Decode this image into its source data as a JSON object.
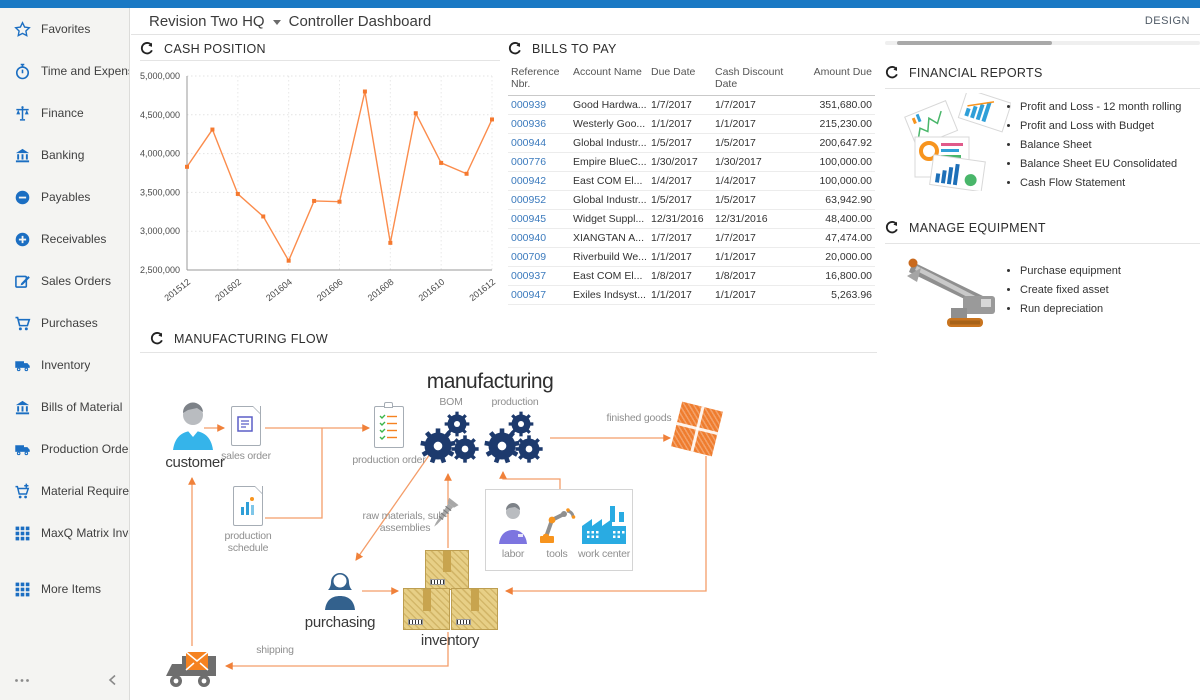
{
  "header": {
    "company": "Revision Two HQ",
    "page": "Controller Dashboard",
    "design_label": "DESIGN"
  },
  "sidebar": {
    "items": [
      {
        "label": "Favorites",
        "icon": "star"
      },
      {
        "label": "Time and Expenses",
        "icon": "stopwatch"
      },
      {
        "label": "Finance",
        "icon": "scales"
      },
      {
        "label": "Banking",
        "icon": "bank"
      },
      {
        "label": "Payables",
        "icon": "minus-circle"
      },
      {
        "label": "Receivables",
        "icon": "plus-circle"
      },
      {
        "label": "Sales Orders",
        "icon": "edit"
      },
      {
        "label": "Purchases",
        "icon": "cart"
      },
      {
        "label": "Inventory",
        "icon": "truck"
      },
      {
        "label": "Bills of Material",
        "icon": "bank"
      },
      {
        "label": "Production Orders",
        "icon": "truck"
      },
      {
        "label": "Material Requirem...",
        "icon": "cart-plus"
      },
      {
        "label": "MaxQ Matrix Invent...",
        "icon": "grid"
      },
      {
        "label": "More Items",
        "icon": "grid",
        "gap": true
      }
    ]
  },
  "panels": {
    "cash_position": {
      "title": "CASH POSITION"
    },
    "bills_to_pay": {
      "title": "BILLS TO PAY"
    },
    "financial_reports": {
      "title": "FINANCIAL REPORTS",
      "links": [
        "Profit and Loss - 12 month rolling",
        "Profit and Loss with Budget",
        "Balance Sheet",
        "Balance Sheet EU Consolidated",
        "Cash Flow Statement"
      ]
    },
    "manage_equipment": {
      "title": "MANAGE EQUIPMENT",
      "links": [
        "Purchase equipment",
        "Create fixed asset",
        "Run depreciation"
      ]
    },
    "manufacturing_flow": {
      "title": "MANUFACTURING FLOW"
    }
  },
  "bills": {
    "columns": [
      "Reference Nbr.",
      "Account Name",
      "Due Date",
      "Cash Discount Date",
      "Amount Due"
    ],
    "rows": [
      {
        "ref": "000939",
        "account": "Good Hardwa...",
        "due": "1/7/2017",
        "discount": "1/7/2017",
        "amount": "351,680.00"
      },
      {
        "ref": "000936",
        "account": "Westerly Goo...",
        "due": "1/1/2017",
        "discount": "1/1/2017",
        "amount": "215,230.00"
      },
      {
        "ref": "000944",
        "account": "Global Industr...",
        "due": "1/5/2017",
        "discount": "1/5/2017",
        "amount": "200,647.92"
      },
      {
        "ref": "000776",
        "account": "Empire BlueC...",
        "due": "1/30/2017",
        "discount": "1/30/2017",
        "amount": "100,000.00"
      },
      {
        "ref": "000942",
        "account": "East COM El...",
        "due": "1/4/2017",
        "discount": "1/4/2017",
        "amount": "100,000.00"
      },
      {
        "ref": "000952",
        "account": "Global Industr...",
        "due": "1/5/2017",
        "discount": "1/5/2017",
        "amount": "63,942.90"
      },
      {
        "ref": "000945",
        "account": "Widget Suppl...",
        "due": "12/31/2016",
        "discount": "12/31/2016",
        "amount": "48,400.00"
      },
      {
        "ref": "000940",
        "account": "XIANGTAN A...",
        "due": "1/7/2017",
        "discount": "1/7/2017",
        "amount": "47,474.00"
      },
      {
        "ref": "000709",
        "account": "Riverbuild We...",
        "due": "1/1/2017",
        "discount": "1/1/2017",
        "amount": "20,000.00"
      },
      {
        "ref": "000937",
        "account": "East COM El...",
        "due": "1/8/2017",
        "discount": "1/8/2017",
        "amount": "16,800.00"
      },
      {
        "ref": "000947",
        "account": "Exiles Indsyst...",
        "due": "1/1/2017",
        "discount": "1/1/2017",
        "amount": "5,263.96"
      }
    ]
  },
  "chart_data": {
    "type": "line",
    "title": "CASH POSITION",
    "x": [
      "201512",
      "201601",
      "201602",
      "201603",
      "201604",
      "201605",
      "201606",
      "201607",
      "201608",
      "201609",
      "201610",
      "201611",
      "201612"
    ],
    "values": [
      63830000,
      64310000,
      63480000,
      63190000,
      62620000,
      63390000,
      63380000,
      64800000,
      62850000,
      64520000,
      63880000,
      63740000,
      64440000
    ],
    "ylim": [
      62500000,
      65000000
    ],
    "ytick": 500000,
    "xtick_every": 2,
    "grid": true,
    "legend": "none",
    "line_color": "#fb8c4c",
    "marker_color": "#f5792f"
  },
  "flow": {
    "labels": {
      "manufacturing": "manufacturing",
      "bom": "BOM",
      "production": "production",
      "customer": "customer",
      "sales_order": "sales order",
      "production_schedule": "production schedule",
      "production_order": "production order",
      "finished_goods": "finished goods",
      "raw_materials": "raw materials, sub-assemblies",
      "labor": "labor",
      "tools": "tools",
      "work_center": "work center",
      "purchasing": "purchasing",
      "inventory": "inventory",
      "shipping": "shipping"
    }
  },
  "colors": {
    "topbar": "#1a79c4",
    "sidebar_icon": "#1b6ec2",
    "link": "#3b7abd",
    "arrow": "#f49d69",
    "gear": "#1d3a6d"
  }
}
